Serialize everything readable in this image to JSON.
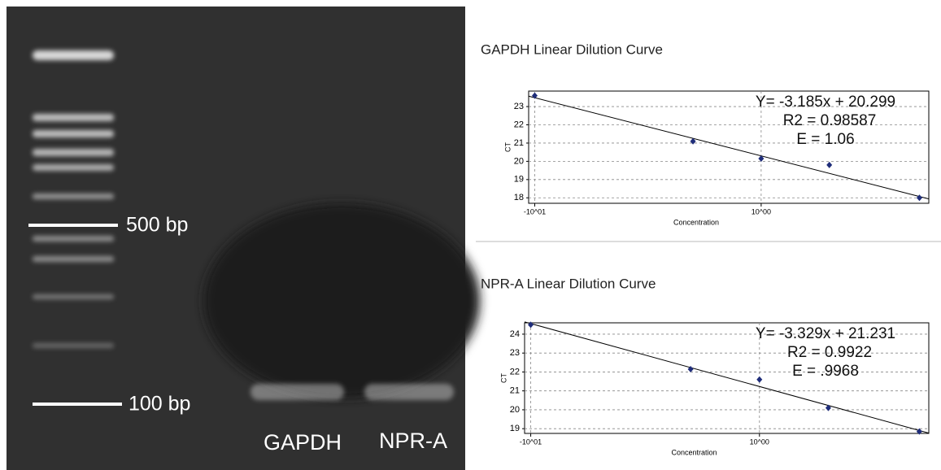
{
  "gel": {
    "ladder_labels": [
      "500 bp",
      "100 bp"
    ],
    "lane_labels": [
      "GAPDH",
      "NPR-A"
    ]
  },
  "chart_data": [
    {
      "type": "scatter",
      "title": "GAPDH Linear Dilution Curve",
      "x_label": "Concentration",
      "y_label": "CT",
      "x": [
        0.1,
        0.5,
        1,
        2,
        5
      ],
      "values": [
        23.6,
        21.1,
        20.15,
        19.8,
        18.0
      ],
      "color": "#1f2d7a",
      "log_x": true,
      "xlim": [
        0.094,
        5.5
      ],
      "ylim": [
        17.7,
        23.85
      ],
      "xticks": [
        {
          "value": 0.1,
          "label": "-10^01"
        },
        {
          "value": 1,
          "label": "10^00"
        }
      ],
      "yticks": [
        18,
        19,
        20,
        21,
        22,
        23
      ],
      "grid": true,
      "fit": {
        "slope": -3.185,
        "intercept": 20.299
      },
      "annotations": [
        "Y= -3.185x + 20.299",
        "R2 = 0.98587",
        "E = 1.06"
      ]
    },
    {
      "type": "scatter",
      "title": "NPR-A Linear Dilution Curve",
      "x_label": "Concentration",
      "y_label": "CT",
      "x": [
        0.1,
        0.5,
        1,
        2,
        5
      ],
      "values": [
        24.5,
        22.15,
        21.6,
        20.1,
        18.85
      ],
      "color": "#1f2d7a",
      "log_x": true,
      "xlim": [
        0.094,
        5.5
      ],
      "ylim": [
        18.75,
        24.6
      ],
      "xticks": [
        {
          "value": 0.1,
          "label": "-10^01"
        },
        {
          "value": 1,
          "label": "10^00"
        }
      ],
      "yticks": [
        19,
        20,
        21,
        22,
        23,
        24
      ],
      "grid": true,
      "fit": {
        "slope": -3.329,
        "intercept": 21.231
      },
      "annotations": [
        "Y= -3.329x + 21.231",
        "R2 = 0.9922",
        "E = .9968"
      ]
    }
  ]
}
